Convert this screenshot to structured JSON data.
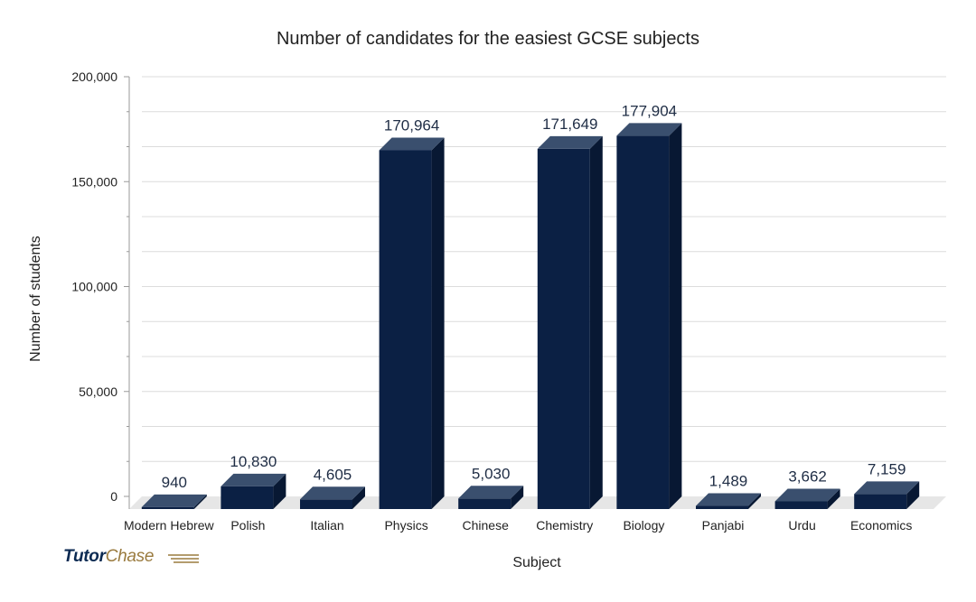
{
  "chart_data": {
    "type": "bar",
    "title": "Number of candidates for the easiest GCSE subjects",
    "xlabel": "Subject",
    "ylabel": "Number of students",
    "categories": [
      "Modern Hebrew",
      "Polish",
      "Italian",
      "Physics",
      "Chinese",
      "Chemistry",
      "Biology",
      "Panjabi",
      "Urdu",
      "Economics"
    ],
    "values": [
      940,
      10830,
      4605,
      170964,
      5030,
      171649,
      177904,
      1489,
      3662,
      7159
    ],
    "value_labels": [
      "940",
      "10,830",
      "4,605",
      "170,964",
      "5,030",
      "171,649",
      "177,904",
      "1,489",
      "3,662",
      "7,159"
    ],
    "ylim": [
      0,
      200000
    ],
    "yticks": [
      0,
      50000,
      100000,
      150000,
      200000
    ],
    "ytick_labels": [
      "0",
      "50,000",
      "100,000",
      "150,000",
      "200,000"
    ],
    "grid": true,
    "style": "3d-bar",
    "colors": {
      "bar_front": "#0b2044",
      "bar_top": "#3a4f6e",
      "bar_side": "#081833",
      "floor": "#e6e6e6",
      "grid": "#dcdcdc",
      "label": "#1f2d45"
    }
  },
  "branding": {
    "logo_word1": "Tutor",
    "logo_word2": "Chase",
    "logo_color1": "#0b2a52",
    "logo_color2": "#9a7b3f"
  }
}
